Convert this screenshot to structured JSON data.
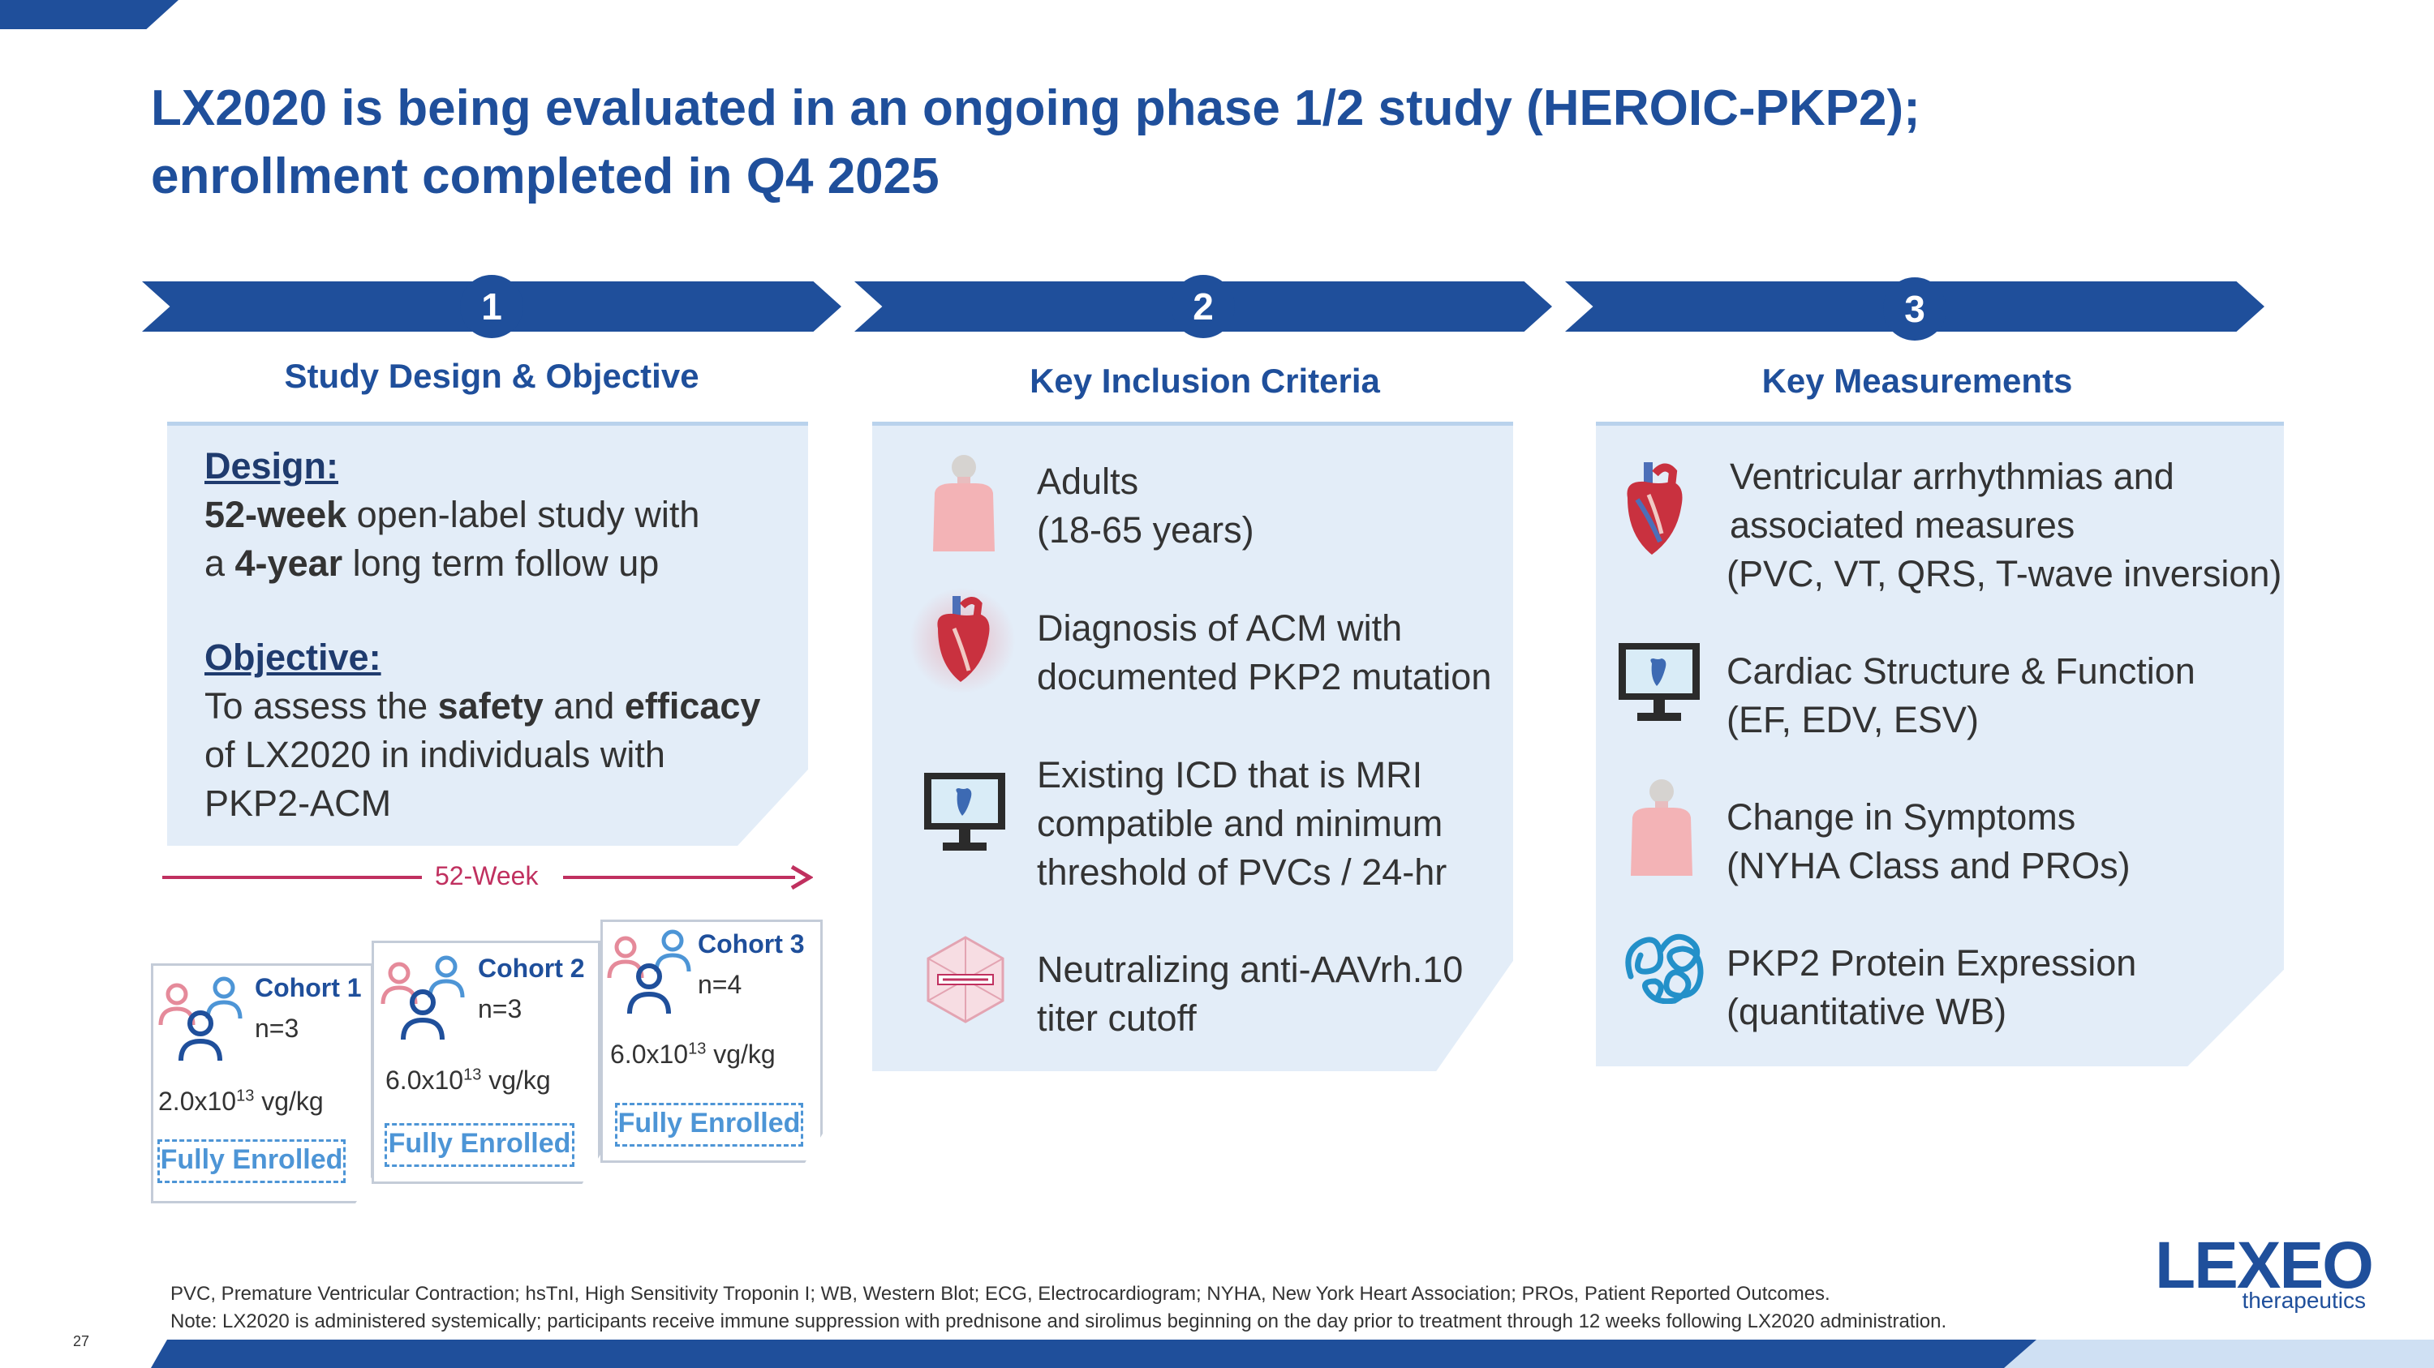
{
  "title_line1": "LX2020 is being evaluated in an ongoing phase 1/2 study (HEROIC-PKP2);",
  "title_line2": "enrollment completed in Q4 2025",
  "steps": [
    {
      "number": "1",
      "heading": "Study Design & Objective"
    },
    {
      "number": "2",
      "heading": "Key Inclusion Criteria"
    },
    {
      "number": "3",
      "heading": "Key Measurements"
    }
  ],
  "design": {
    "design_label": "Design:",
    "week_bold": "52-week",
    "design_text_a": " open-label study with",
    "design_text_b_pre": "a ",
    "year_bold": "4-year",
    "design_text_b_post": " long term follow up",
    "objective_label": "Objective:",
    "obj_pre": "To assess the ",
    "safety": "safety",
    "obj_and": " and ",
    "efficacy": "efficacy",
    "obj_line2": "of LX2020 in individuals with",
    "obj_line3": "PKP2-ACM"
  },
  "timeline_label": "52-Week",
  "cohorts": [
    {
      "name": "Cohort 1",
      "n": "n=3",
      "dose_base": "2.0x10",
      "dose_exp": "13",
      "dose_unit": " vg/kg",
      "status": "Fully Enrolled"
    },
    {
      "name": "Cohort 2",
      "n": "n=3",
      "dose_base": "6.0x10",
      "dose_exp": "13",
      "dose_unit": " vg/kg",
      "status": "Fully Enrolled"
    },
    {
      "name": "Cohort 3",
      "n": "n=4",
      "dose_base": "6.0x10",
      "dose_exp": "13",
      "dose_unit": " vg/kg",
      "status": "Fully Enrolled"
    }
  ],
  "inclusion": [
    {
      "icon": "person-icon",
      "line1": "Adults",
      "line2": "(18-65 years)",
      "line3": ""
    },
    {
      "icon": "heart-icon",
      "line1": "Diagnosis of ACM with",
      "line2": "documented PKP2 mutation",
      "line3": ""
    },
    {
      "icon": "monitor-icon",
      "line1": "Existing ICD that is MRI",
      "line2": "compatible and minimum",
      "line3": "threshold of PVCs / 24-hr"
    },
    {
      "icon": "aav-capsid-icon",
      "line1": "Neutralizing anti-AAVrh.10",
      "line2": "titer cutoff",
      "line3": ""
    }
  ],
  "measurements": [
    {
      "icon": "heart-icon",
      "line1": "Ventricular arrhythmias and",
      "line2": "associated measures",
      "line3": "(PVC, VT, QRS, T-wave inversion)"
    },
    {
      "icon": "monitor-icon",
      "line1": "Cardiac Structure & Function",
      "line2": "(EF, EDV, ESV)",
      "line3": ""
    },
    {
      "icon": "person-icon",
      "line1": "Change in Symptoms",
      "line2": "(NYHA Class and PROs)",
      "line3": ""
    },
    {
      "icon": "protein-icon",
      "line1": "PKP2 Protein Expression",
      "line2": "(quantitative WB)",
      "line3": ""
    }
  ],
  "footnote1": "PVC, Premature Ventricular Contraction; hsTnI, High Sensitivity Troponin I; WB, Western Blot; ECG, Electrocardiogram; NYHA, New York Heart Association; PROs, Patient Reported Outcomes.",
  "footnote2": "Note: LX2020 is administered systemically; participants receive immune suppression with prednisone and sirolimus beginning on the day prior to treatment through 12 weeks following LX2020 administration.",
  "page_number": "27",
  "logo": {
    "word": "LEXEO",
    "sub": "therapeutics"
  },
  "colors": {
    "primary": "#1f4f9b",
    "panel": "#e3edf8",
    "accent_pink": "#c0305f",
    "enrolled_blue": "#4d95d6"
  }
}
